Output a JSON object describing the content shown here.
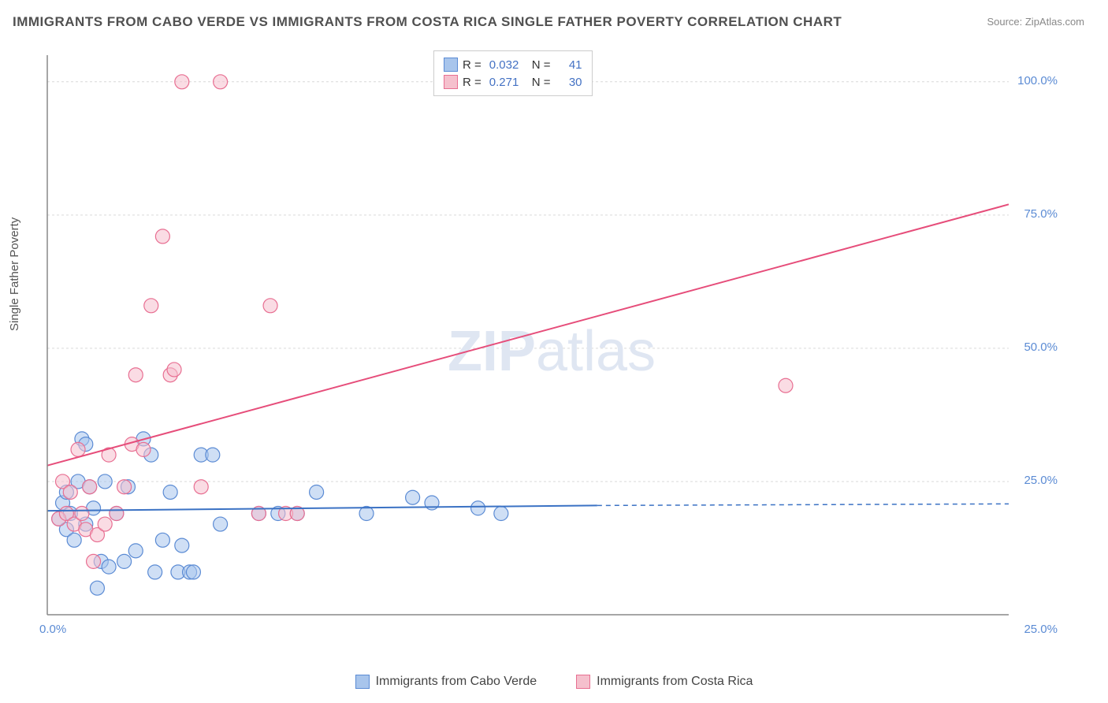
{
  "title": "IMMIGRANTS FROM CABO VERDE VS IMMIGRANTS FROM COSTA RICA SINGLE FATHER POVERTY CORRELATION CHART",
  "source": "Source: ZipAtlas.com",
  "y_axis_label": "Single Father Poverty",
  "watermark": {
    "bold": "ZIP",
    "light": "atlas"
  },
  "chart": {
    "type": "scatter",
    "xlim": [
      0,
      25
    ],
    "ylim": [
      0,
      105
    ],
    "x_ticks": [
      {
        "value": 0,
        "label": "0.0%"
      },
      {
        "value": 25,
        "label": "25.0%"
      }
    ],
    "y_ticks": [
      {
        "value": 25,
        "label": "25.0%"
      },
      {
        "value": 50,
        "label": "50.0%"
      },
      {
        "value": 75,
        "label": "75.0%"
      },
      {
        "value": 100,
        "label": "100.0%"
      }
    ],
    "grid_color": "#d9d9d9",
    "axis_color": "#888888",
    "background_color": "#ffffff",
    "marker_radius": 9,
    "marker_opacity": 0.55,
    "line_width": 2,
    "series": [
      {
        "name": "Immigrants from Cabo Verde",
        "color_fill": "#a8c5ec",
        "color_stroke": "#5b8bd4",
        "trend_color": "#3b72c4",
        "R": "0.032",
        "N": "41",
        "trend": {
          "x1": 0,
          "y1": 19.5,
          "x2": 14.3,
          "y2": 20.5,
          "dash_from": 14.3,
          "dash_to": 25,
          "dash_y": 20.8
        },
        "points": [
          [
            0.3,
            18
          ],
          [
            0.4,
            21
          ],
          [
            0.5,
            16
          ],
          [
            0.5,
            23
          ],
          [
            0.6,
            19
          ],
          [
            0.7,
            14
          ],
          [
            0.8,
            25
          ],
          [
            0.9,
            33
          ],
          [
            1.0,
            32
          ],
          [
            1.0,
            17
          ],
          [
            1.1,
            24
          ],
          [
            1.2,
            20
          ],
          [
            1.3,
            5
          ],
          [
            1.4,
            10
          ],
          [
            1.5,
            25
          ],
          [
            1.6,
            9
          ],
          [
            1.8,
            19
          ],
          [
            2.0,
            10
          ],
          [
            2.1,
            24
          ],
          [
            2.3,
            12
          ],
          [
            2.5,
            33
          ],
          [
            2.7,
            30
          ],
          [
            2.8,
            8
          ],
          [
            3.0,
            14
          ],
          [
            3.2,
            23
          ],
          [
            3.4,
            8
          ],
          [
            3.5,
            13
          ],
          [
            3.7,
            8
          ],
          [
            3.8,
            8
          ],
          [
            4.0,
            30
          ],
          [
            4.3,
            30
          ],
          [
            4.5,
            17
          ],
          [
            5.5,
            19
          ],
          [
            6.0,
            19
          ],
          [
            6.5,
            19
          ],
          [
            7.0,
            23
          ],
          [
            8.3,
            19
          ],
          [
            9.5,
            22
          ],
          [
            10.0,
            21
          ],
          [
            11.2,
            20
          ],
          [
            11.8,
            19
          ]
        ]
      },
      {
        "name": "Immigrants from Costa Rica",
        "color_fill": "#f5c0cd",
        "color_stroke": "#e86f92",
        "trend_color": "#e64d7a",
        "R": "0.271",
        "N": "30",
        "trend": {
          "x1": 0,
          "y1": 28,
          "x2": 25,
          "y2": 77
        },
        "points": [
          [
            0.3,
            18
          ],
          [
            0.4,
            25
          ],
          [
            0.5,
            19
          ],
          [
            0.6,
            23
          ],
          [
            0.7,
            17
          ],
          [
            0.8,
            31
          ],
          [
            0.9,
            19
          ],
          [
            1.0,
            16
          ],
          [
            1.1,
            24
          ],
          [
            1.2,
            10
          ],
          [
            1.3,
            15
          ],
          [
            1.5,
            17
          ],
          [
            1.6,
            30
          ],
          [
            1.8,
            19
          ],
          [
            2.0,
            24
          ],
          [
            2.2,
            32
          ],
          [
            2.3,
            45
          ],
          [
            2.5,
            31
          ],
          [
            2.7,
            58
          ],
          [
            3.0,
            71
          ],
          [
            3.2,
            45
          ],
          [
            3.3,
            46
          ],
          [
            3.5,
            100
          ],
          [
            4.0,
            24
          ],
          [
            4.5,
            100
          ],
          [
            5.5,
            19
          ],
          [
            5.8,
            58
          ],
          [
            6.2,
            19
          ],
          [
            6.5,
            19
          ],
          [
            19.2,
            43
          ]
        ]
      }
    ]
  },
  "legend_top": {
    "rows": [
      {
        "swatch_fill": "#a8c5ec",
        "swatch_stroke": "#5b8bd4",
        "R_label": "R =",
        "R": "0.032",
        "N_label": "N =",
        "N": "41"
      },
      {
        "swatch_fill": "#f5c0cd",
        "swatch_stroke": "#e86f92",
        "R_label": "R =",
        "R": "0.271",
        "N_label": "N =",
        "N": "30"
      }
    ]
  },
  "legend_bottom": [
    {
      "swatch_fill": "#a8c5ec",
      "swatch_stroke": "#5b8bd4",
      "label": "Immigrants from Cabo Verde"
    },
    {
      "swatch_fill": "#f5c0cd",
      "swatch_stroke": "#e86f92",
      "label": "Immigrants from Costa Rica"
    }
  ]
}
